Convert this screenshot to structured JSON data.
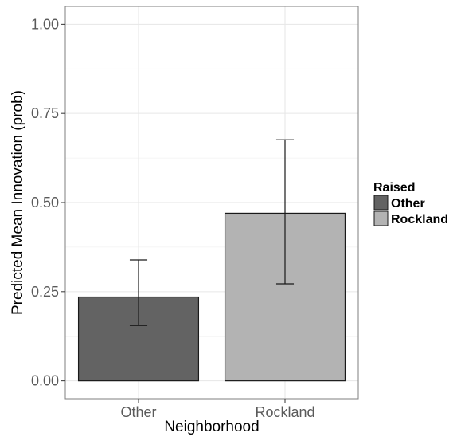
{
  "chart_data": {
    "type": "bar",
    "xlabel": "Neighborhood",
    "ylabel": "Predicted Mean Innovation (prob)",
    "ylim": [
      -0.05,
      1.05
    ],
    "yticks": [
      0.0,
      0.25,
      0.5,
      0.75,
      1.0
    ],
    "ytick_labels": [
      "0.00",
      "0.25",
      "0.50",
      "0.75",
      "1.00"
    ],
    "categories": [
      "Other",
      "Rockland"
    ],
    "values": [
      0.235,
      0.47
    ],
    "error_low": [
      0.155,
      0.272
    ],
    "error_high": [
      0.339,
      0.676
    ],
    "colors": [
      "#636363",
      "#b3b3b3"
    ],
    "grid": true,
    "legend": {
      "title": "Raised",
      "placement": "right",
      "entries": [
        {
          "label": "Other",
          "color": "#636363"
        },
        {
          "label": "Rockland",
          "color": "#b3b3b3"
        }
      ]
    }
  }
}
